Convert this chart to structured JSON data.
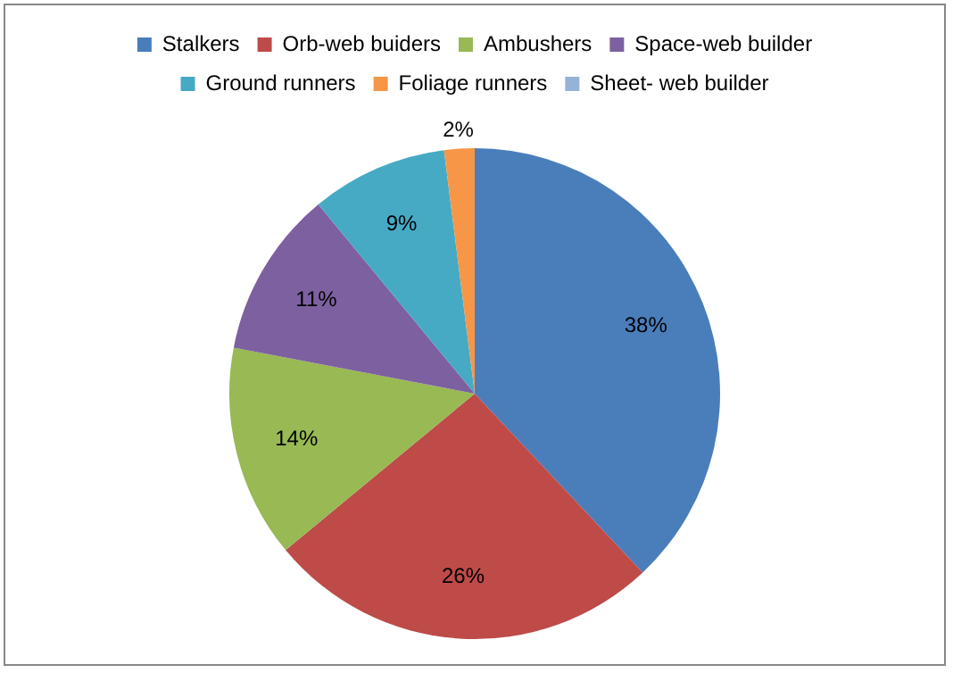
{
  "chart_data": {
    "type": "pie",
    "categories": [
      "Stalkers",
      "Orb-web buiders",
      "Ambushers",
      "Space-web builder",
      "Ground runners",
      "Foliage runners",
      "Sheet- web builder"
    ],
    "values": [
      38,
      26,
      14,
      11,
      9,
      2,
      0
    ],
    "value_labels": [
      "38%",
      "26%",
      "14%",
      "11%",
      "9%",
      "2%",
      null
    ],
    "colors": [
      "#4a7ebb",
      "#be4b48",
      "#98b954",
      "#7d60a0",
      "#46aac5",
      "#f79646",
      "#95b3d7"
    ],
    "legend": "top"
  }
}
